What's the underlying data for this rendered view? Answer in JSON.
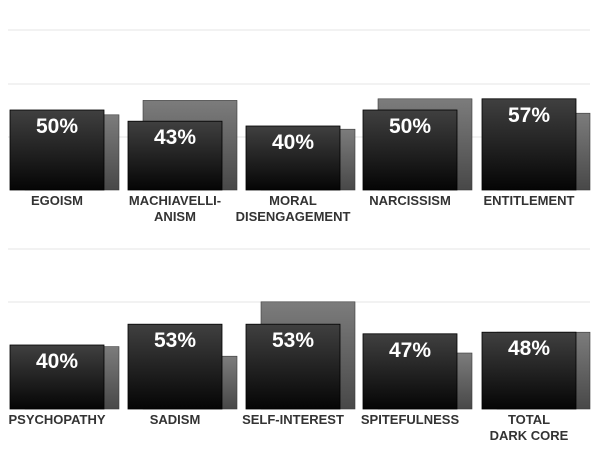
{
  "chart_data": [
    {
      "type": "bar",
      "title": "",
      "xlabel": "",
      "ylabel": "",
      "ylim": [
        0,
        100
      ],
      "grid": true,
      "categories": [
        [
          "EGOISM"
        ],
        [
          "MACHIAVELLI-",
          "ANISM"
        ],
        [
          "MORAL",
          "DISENGAGEMENT"
        ],
        [
          "NARCISSISM"
        ],
        [
          "ENTITLEMENT"
        ]
      ],
      "series": [
        {
          "values": [
            50,
            43,
            40,
            50,
            57
          ]
        },
        {
          "values": [
            47,
            56,
            38,
            57,
            48
          ]
        }
      ],
      "data_labels": [
        "50%",
        "43%",
        "40%",
        "50%",
        "57%"
      ]
    },
    {
      "type": "bar",
      "title": "",
      "xlabel": "",
      "ylabel": "",
      "ylim": [
        0,
        100
      ],
      "grid": true,
      "categories": [
        [
          "PSYCHOPATHY"
        ],
        [
          "SADISM"
        ],
        [
          "SELF-INTEREST"
        ],
        [
          "SPITEFULNESS"
        ],
        [
          "TOTAL",
          "DARK CORE"
        ]
      ],
      "series": [
        {
          "values": [
            40,
            53,
            53,
            47,
            48
          ]
        },
        {
          "values": [
            39,
            33,
            67,
            35,
            48
          ]
        }
      ],
      "data_labels": [
        "40%",
        "53%",
        "53%",
        "47%",
        "48%"
      ]
    }
  ],
  "colors": {
    "front_bar_top": "#404040",
    "front_bar_bottom": "#050505",
    "back_bar_top": "#7c7c7c",
    "back_bar_bottom": "#484848",
    "label_on_bar": "#ffffff",
    "category_label": "#333333",
    "grid": "#e6e6e6"
  }
}
